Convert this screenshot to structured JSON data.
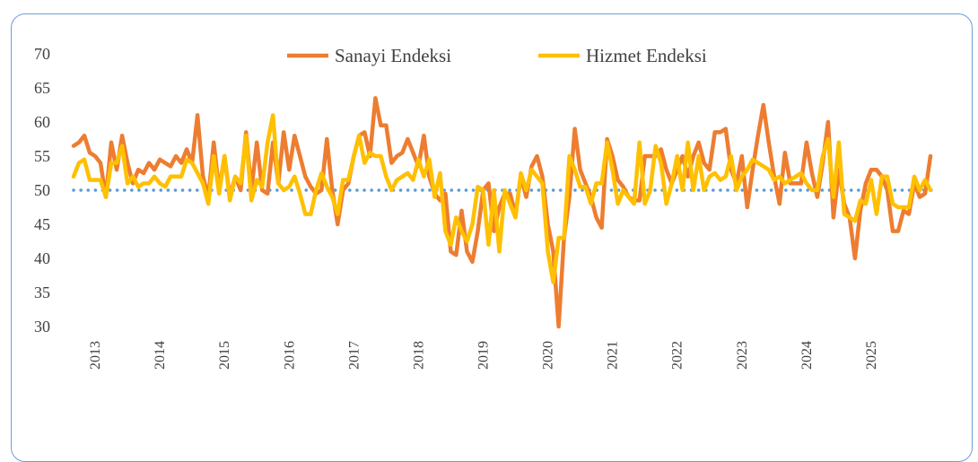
{
  "chart_data": {
    "type": "line",
    "title": "",
    "xlabel": "",
    "ylabel": "",
    "ylim": [
      30,
      70
    ],
    "yticks": [
      70,
      65,
      60,
      55,
      50,
      45,
      40,
      35,
      30
    ],
    "x_tick_labels": [
      "2013",
      "2014",
      "2015",
      "2016",
      "2017",
      "2018",
      "2019",
      "2020",
      "2021",
      "2022",
      "2023",
      "2024",
      "2025"
    ],
    "x_frequency": "monthly",
    "grid": false,
    "legend": "top-center",
    "reference_line": {
      "value": 50,
      "style": "dotted",
      "color": "#5b9bd5"
    },
    "series": [
      {
        "name": "Sanayi Endeksi",
        "color": "#ed7d31",
        "values": [
          56.5,
          57,
          58,
          55.5,
          55,
          54,
          49,
          57,
          53,
          58,
          54,
          51,
          53,
          52.5,
          54,
          53,
          54.5,
          54,
          53.5,
          55,
          54,
          56,
          54,
          61,
          52,
          49,
          57,
          50,
          55,
          49,
          52,
          50,
          58.5,
          50,
          57,
          50,
          49.5,
          57,
          51,
          58.5,
          53,
          58,
          55,
          52,
          50.5,
          49.5,
          50,
          57.5,
          50,
          45,
          50,
          51,
          55,
          58,
          58.5,
          55,
          63.5,
          59.5,
          59.5,
          54,
          55,
          55.5,
          57.5,
          55.5,
          53.5,
          58,
          52,
          49.5,
          48.5,
          49.5,
          41,
          40.5,
          47,
          41,
          39.5,
          44,
          50,
          51,
          44,
          47.5,
          49.5,
          49.5,
          46.5,
          52,
          49,
          53.5,
          55,
          52,
          45,
          41,
          30,
          43,
          49,
          59,
          53,
          51,
          49,
          46,
          44.5,
          57.5,
          55,
          51.5,
          50.5,
          49,
          48.5,
          48.5,
          55,
          55,
          55,
          56,
          53,
          51,
          53,
          55,
          52,
          55,
          57,
          54,
          53,
          58.5,
          58.5,
          59,
          53,
          51,
          55,
          47.5,
          53,
          58,
          62.5,
          57,
          52,
          48,
          55.5,
          51,
          51,
          51,
          57,
          52.5,
          49,
          54,
          60,
          46,
          53,
          48,
          46,
          40,
          47,
          51,
          53,
          53,
          52,
          50,
          44,
          44,
          47,
          46.5,
          51,
          49,
          49.5,
          55
        ]
      },
      {
        "name": "Hizmet Endeksi",
        "color": "#ffc000",
        "values": [
          52,
          54,
          54.5,
          51.5,
          51.5,
          51.5,
          49,
          54,
          54,
          56.5,
          51,
          52,
          50.5,
          51,
          51,
          52,
          51,
          50.5,
          52,
          52,
          52,
          54.5,
          54,
          52.5,
          51,
          48,
          55,
          49.5,
          55,
          48.5,
          52,
          51,
          58,
          48.5,
          51.5,
          50.5,
          57,
          61,
          51,
          50,
          50.5,
          52,
          49.5,
          46.5,
          46.5,
          50,
          52.5,
          50.5,
          49,
          46.5,
          51.5,
          51.5,
          55,
          58,
          54,
          55.5,
          55,
          55,
          52,
          50,
          51.5,
          52,
          52.5,
          51.5,
          54.5,
          52,
          54.5,
          49,
          52.5,
          44,
          42,
          46,
          44,
          42.5,
          45,
          50.5,
          50,
          42,
          50,
          41,
          50,
          48,
          46,
          52.5,
          50,
          53,
          52,
          51,
          41,
          36.5,
          43,
          43,
          55,
          53,
          50.5,
          50.5,
          48,
          51,
          51,
          57,
          53,
          48,
          50,
          49,
          48,
          57,
          48,
          50,
          56.5,
          54,
          48,
          51,
          55,
          50,
          57,
          50,
          55,
          50,
          52,
          52.5,
          51.5,
          52,
          55,
          50,
          52,
          53,
          54.5,
          54,
          53.5,
          53,
          51.5,
          52,
          51,
          51.5,
          52,
          52.5,
          51,
          50,
          50,
          55,
          57.5,
          49,
          57,
          46.5,
          46,
          45.5,
          48.5,
          48,
          51.5,
          46.5,
          52,
          52,
          48,
          47.5,
          47.5,
          47.5,
          52,
          50,
          51.5,
          50
        ]
      }
    ]
  }
}
